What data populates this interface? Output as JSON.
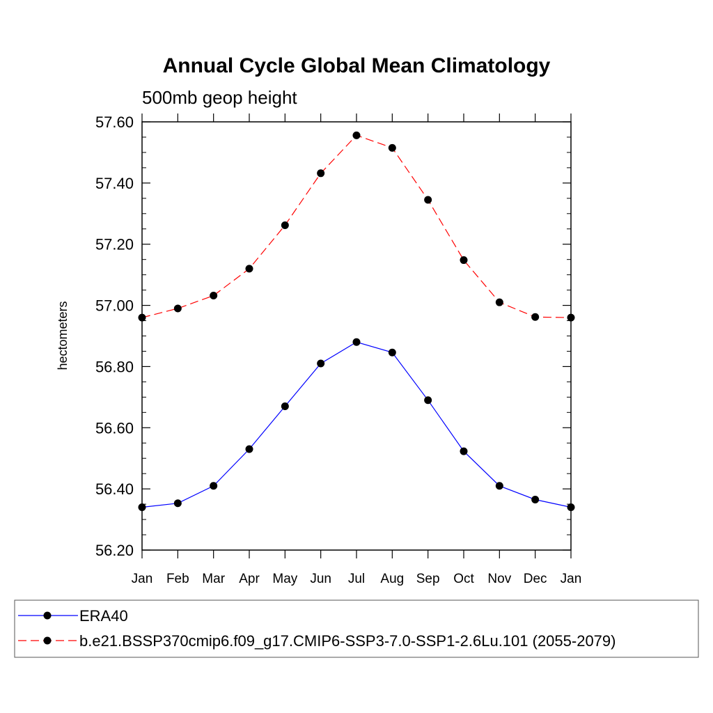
{
  "chart_data": {
    "type": "line",
    "title": "Annual Cycle Global Mean Climatology",
    "subtitle": "500mb geop height",
    "xlabel": "",
    "ylabel": "hectometers",
    "categories": [
      "Jan",
      "Feb",
      "Mar",
      "Apr",
      "May",
      "Jun",
      "Jul",
      "Aug",
      "Sep",
      "Oct",
      "Nov",
      "Dec",
      "Jan"
    ],
    "ylim": [
      56.2,
      57.6
    ],
    "yticks": [
      "56.20",
      "56.40",
      "56.60",
      "56.80",
      "57.00",
      "57.20",
      "57.40",
      "57.60"
    ],
    "grid": false,
    "legend_position": "bottom",
    "series": [
      {
        "name": "ERA40",
        "color": "#0000ff",
        "dash": "solid",
        "values": [
          56.34,
          56.353,
          56.41,
          56.53,
          56.67,
          56.81,
          56.88,
          56.846,
          56.69,
          56.523,
          56.41,
          56.365,
          56.34
        ]
      },
      {
        "name": "b.e21.BSSP370cmip6.f09_g17.CMIP6-SSP3-7.0-SSP1-2.6Lu.101 (2055-2079)",
        "color": "#ff0000",
        "dash": "dashed",
        "values": [
          56.96,
          56.99,
          57.032,
          57.12,
          57.262,
          57.432,
          57.556,
          57.515,
          57.345,
          57.148,
          57.01,
          56.962,
          56.96
        ]
      }
    ]
  }
}
